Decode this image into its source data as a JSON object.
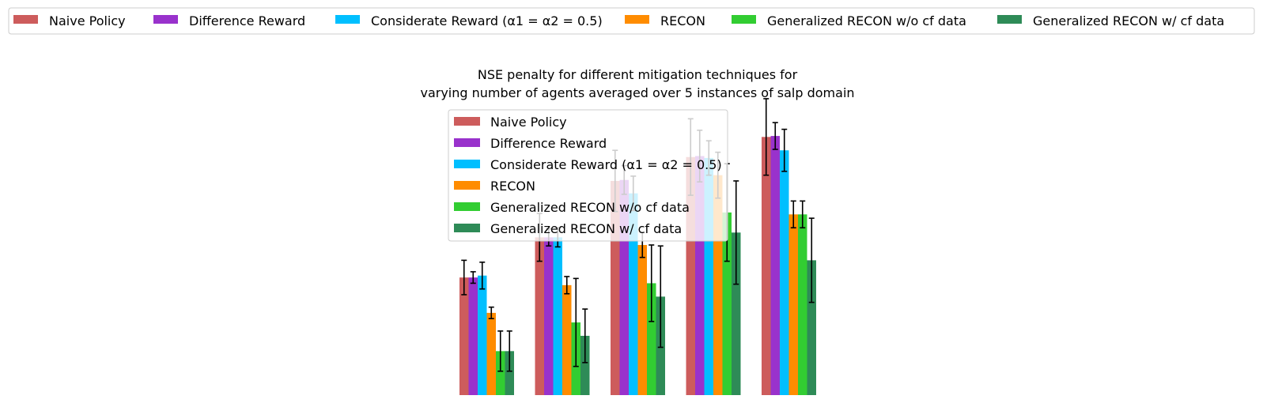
{
  "chart_data": {
    "type": "bar",
    "title_line1": "NSE penalty for different mitigation techniques for",
    "title_line2": "varying number of agents averaged over 5 instances of salp domain",
    "xlabel": "",
    "ylabel": "",
    "axes_visible": false,
    "grid": false,
    "group_count": 5,
    "ylim": [
      0,
      320
    ],
    "series": [
      {
        "name": "Naive Policy",
        "color": "#cd5c5c",
        "values": [
          123,
          165,
          224,
          249,
          270
        ],
        "err": [
          18,
          25,
          32,
          40,
          40
        ]
      },
      {
        "name": "Difference Reward",
        "color": "#9932cc",
        "values": [
          123,
          165,
          225,
          250,
          271
        ],
        "err": [
          6,
          9,
          15,
          27,
          14
        ]
      },
      {
        "name": "Considerate Reward",
        "name_math": "(α1 = α2 = 0.5)",
        "color": "#00bfff",
        "values": [
          125,
          165,
          211,
          248,
          256
        ],
        "err": [
          14,
          10,
          18,
          18,
          22
        ]
      },
      {
        "name": "RECON",
        "color": "#ff8c00",
        "values": [
          86,
          115,
          157,
          230,
          189
        ],
        "err": [
          6,
          9,
          13,
          24,
          14
        ]
      },
      {
        "name": "Generalized RECON w/o cf data",
        "color": "#32cd32",
        "values": [
          46,
          76,
          117,
          191,
          189
        ],
        "err": [
          21,
          46,
          40,
          51,
          14
        ]
      },
      {
        "name": "Generalized RECON w/ cf data",
        "color": "#2e8b57",
        "values": [
          46,
          62,
          103,
          170,
          141
        ],
        "err": [
          21,
          28,
          53,
          54,
          44
        ]
      }
    ],
    "legends": [
      {
        "placement": "top, spanning full width, single row"
      },
      {
        "placement": "upper-left of plot area"
      }
    ]
  }
}
